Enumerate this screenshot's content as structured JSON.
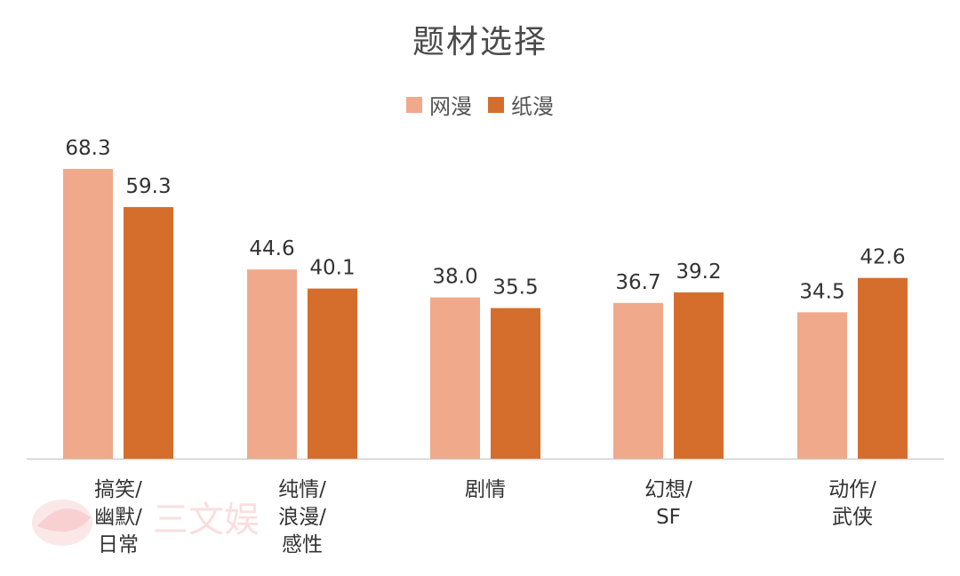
{
  "chart_data": {
    "type": "bar",
    "title": "题材选择",
    "categories": [
      [
        "搞笑/",
        "幽默/",
        "日常"
      ],
      [
        "纯情/",
        "浪漫/",
        "感性"
      ],
      [
        "剧情"
      ],
      [
        "幻想/",
        "SF"
      ],
      [
        "动作/",
        "武侠"
      ]
    ],
    "series": [
      {
        "name": "网漫",
        "color": "#f0a98b",
        "values": [
          68.3,
          44.6,
          38.0,
          36.7,
          34.5
        ]
      },
      {
        "name": "纸漫",
        "color": "#d56e2c",
        "values": [
          59.3,
          40.1,
          35.5,
          39.2,
          42.6
        ]
      }
    ],
    "ylim": [
      0,
      68.3
    ],
    "grid": false,
    "legend_position": "top-center",
    "watermark_text": "三文娱"
  }
}
